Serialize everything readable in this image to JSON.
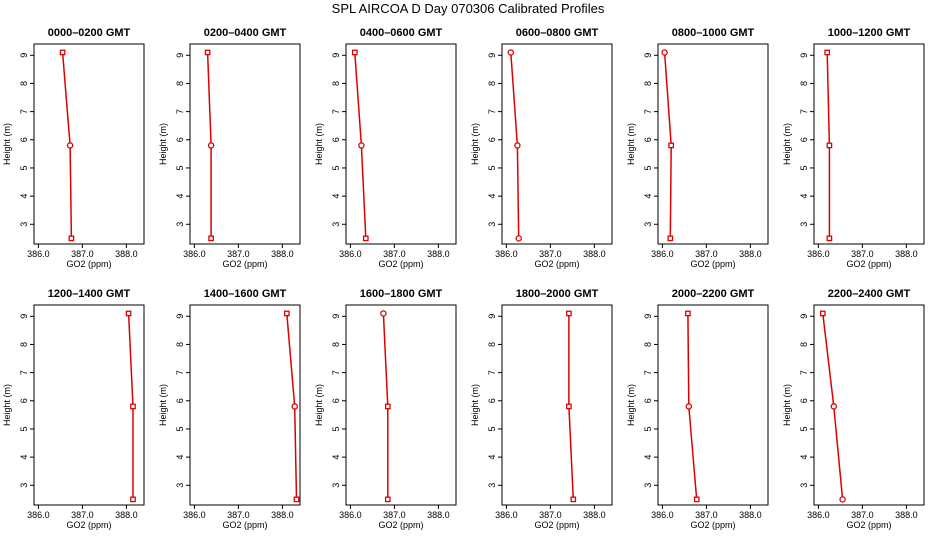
{
  "title": "SPL AIRCOA D  Day 070306  Calibrated Profiles",
  "style": {
    "line_color": "#dd0000",
    "marker_color": "#dd0000",
    "axis_color": "#000000"
  },
  "chart_data": [
    {
      "type": "line",
      "title": "0000–0200 GMT",
      "xlabel": "GO2 (ppm)",
      "ylabel": "Height (m)",
      "xlim": [
        385.9,
        388.4
      ],
      "ylim": [
        2.3,
        9.4
      ],
      "xticks": [
        "386.0",
        "387.0",
        "388.0"
      ],
      "yticks": [
        "3",
        "4",
        "5",
        "6",
        "7",
        "8",
        "9"
      ],
      "x": [
        386.55,
        386.72,
        386.75
      ],
      "y": [
        9.1,
        5.8,
        2.5
      ],
      "markers": [
        "square",
        "circle",
        "square"
      ]
    },
    {
      "type": "line",
      "title": "0200–0400 GMT",
      "xlabel": "GO2 (ppm)",
      "ylabel": "Height (m)",
      "xlim": [
        385.9,
        388.4
      ],
      "ylim": [
        2.3,
        9.4
      ],
      "xticks": [
        "386.0",
        "387.0",
        "388.0"
      ],
      "yticks": [
        "3",
        "4",
        "5",
        "6",
        "7",
        "8",
        "9"
      ],
      "x": [
        386.3,
        386.38,
        386.38
      ],
      "y": [
        9.1,
        5.8,
        2.5
      ],
      "markers": [
        "square",
        "circle",
        "square"
      ]
    },
    {
      "type": "line",
      "title": "0400–0600 GMT",
      "xlabel": "GO2 (ppm)",
      "ylabel": "Height (m)",
      "xlim": [
        385.9,
        388.4
      ],
      "ylim": [
        2.3,
        9.4
      ],
      "xticks": [
        "386.0",
        "387.0",
        "388.0"
      ],
      "yticks": [
        "3",
        "4",
        "5",
        "6",
        "7",
        "8",
        "9"
      ],
      "x": [
        386.1,
        386.25,
        386.35
      ],
      "y": [
        9.1,
        5.8,
        2.5
      ],
      "markers": [
        "square",
        "circle",
        "square"
      ]
    },
    {
      "type": "line",
      "title": "0600–0800 GMT",
      "xlabel": "GO2 (ppm)",
      "ylabel": "Height (m)",
      "xlim": [
        385.9,
        388.4
      ],
      "ylim": [
        2.3,
        9.4
      ],
      "xticks": [
        "386.0",
        "387.0",
        "388.0"
      ],
      "yticks": [
        "3",
        "4",
        "5",
        "6",
        "7",
        "8",
        "9"
      ],
      "x": [
        386.1,
        386.25,
        386.28
      ],
      "y": [
        9.1,
        5.8,
        2.5
      ],
      "markers": [
        "circle",
        "circle",
        "circle"
      ]
    },
    {
      "type": "line",
      "title": "0800–1000 GMT",
      "xlabel": "GO2 (ppm)",
      "ylabel": "Height (m)",
      "xlim": [
        385.9,
        388.4
      ],
      "ylim": [
        2.3,
        9.4
      ],
      "xticks": [
        "386.0",
        "387.0",
        "388.0"
      ],
      "yticks": [
        "3",
        "4",
        "5",
        "6",
        "7",
        "8",
        "9"
      ],
      "x": [
        386.05,
        386.2,
        386.18
      ],
      "y": [
        9.1,
        5.8,
        2.5
      ],
      "markers": [
        "circle",
        "square",
        "square"
      ]
    },
    {
      "type": "line",
      "title": "1000–1200 GMT",
      "xlabel": "GO2 (ppm)",
      "ylabel": "Height (m)",
      "xlim": [
        385.9,
        388.4
      ],
      "ylim": [
        2.3,
        9.4
      ],
      "xticks": [
        "386.0",
        "387.0",
        "388.0"
      ],
      "yticks": [
        "3",
        "4",
        "5",
        "6",
        "7",
        "8",
        "9"
      ],
      "x": [
        386.2,
        386.25,
        386.25
      ],
      "y": [
        9.1,
        5.8,
        2.5
      ],
      "markers": [
        "square",
        "square",
        "square"
      ]
    },
    {
      "type": "line",
      "title": "1200–1400 GMT",
      "xlabel": "GO2 (ppm)",
      "ylabel": "Height (m)",
      "xlim": [
        385.9,
        388.4
      ],
      "ylim": [
        2.3,
        9.4
      ],
      "xticks": [
        "386.0",
        "387.0",
        "388.0"
      ],
      "yticks": [
        "3",
        "4",
        "5",
        "6",
        "7",
        "8",
        "9"
      ],
      "x": [
        388.05,
        388.15,
        388.15
      ],
      "y": [
        9.1,
        5.8,
        2.5
      ],
      "markers": [
        "square",
        "square",
        "square"
      ]
    },
    {
      "type": "line",
      "title": "1400–1600 GMT",
      "xlabel": "GO2 (ppm)",
      "ylabel": "Height (m)",
      "xlim": [
        385.9,
        388.4
      ],
      "ylim": [
        2.3,
        9.4
      ],
      "xticks": [
        "386.0",
        "387.0",
        "388.0"
      ],
      "yticks": [
        "3",
        "4",
        "5",
        "6",
        "7",
        "8",
        "9"
      ],
      "x": [
        388.1,
        388.28,
        388.32
      ],
      "y": [
        9.1,
        5.8,
        2.5
      ],
      "markers": [
        "square",
        "circle",
        "square"
      ]
    },
    {
      "type": "line",
      "title": "1600–1800 GMT",
      "xlabel": "GO2 (ppm)",
      "ylabel": "Height (m)",
      "xlim": [
        385.9,
        388.4
      ],
      "ylim": [
        2.3,
        9.4
      ],
      "xticks": [
        "386.0",
        "387.0",
        "388.0"
      ],
      "yticks": [
        "3",
        "4",
        "5",
        "6",
        "7",
        "8",
        "9"
      ],
      "x": [
        386.75,
        386.85,
        386.85
      ],
      "y": [
        9.1,
        5.8,
        2.5
      ],
      "markers": [
        "circle",
        "square",
        "square"
      ]
    },
    {
      "type": "line",
      "title": "1800–2000 GMT",
      "xlabel": "GO2 (ppm)",
      "ylabel": "Height (m)",
      "xlim": [
        385.9,
        388.4
      ],
      "ylim": [
        2.3,
        9.4
      ],
      "xticks": [
        "386.0",
        "387.0",
        "388.0"
      ],
      "yticks": [
        "3",
        "4",
        "5",
        "6",
        "7",
        "8",
        "9"
      ],
      "x": [
        387.42,
        387.42,
        387.52
      ],
      "y": [
        9.1,
        5.8,
        2.5
      ],
      "markers": [
        "square",
        "square",
        "square"
      ]
    },
    {
      "type": "line",
      "title": "2000–2200 GMT",
      "xlabel": "GO2 (ppm)",
      "ylabel": "Height (m)",
      "xlim": [
        385.9,
        388.4
      ],
      "ylim": [
        2.3,
        9.4
      ],
      "xticks": [
        "386.0",
        "387.0",
        "388.0"
      ],
      "yticks": [
        "3",
        "4",
        "5",
        "6",
        "7",
        "8",
        "9"
      ],
      "x": [
        386.58,
        386.6,
        386.78
      ],
      "y": [
        9.1,
        5.8,
        2.5
      ],
      "markers": [
        "square",
        "circle",
        "square"
      ]
    },
    {
      "type": "line",
      "title": "2200–2400 GMT",
      "xlabel": "GO2 (ppm)",
      "ylabel": "Height (m)",
      "xlim": [
        385.9,
        388.4
      ],
      "ylim": [
        2.3,
        9.4
      ],
      "xticks": [
        "386.0",
        "387.0",
        "388.0"
      ],
      "yticks": [
        "3",
        "4",
        "5",
        "6",
        "7",
        "8",
        "9"
      ],
      "x": [
        386.1,
        386.35,
        386.55
      ],
      "y": [
        9.1,
        5.8,
        2.5
      ],
      "markers": [
        "square",
        "circle",
        "circle"
      ]
    }
  ]
}
